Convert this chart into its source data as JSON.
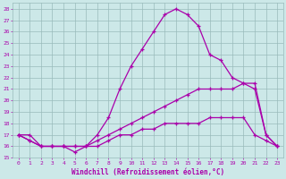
{
  "xlabel": "Windchill (Refroidissement éolien,°C)",
  "xlim": [
    -0.5,
    23.5
  ],
  "ylim": [
    15,
    28.5
  ],
  "yticks": [
    15,
    16,
    17,
    18,
    19,
    20,
    21,
    22,
    23,
    24,
    25,
    26,
    27,
    28
  ],
  "xticks": [
    0,
    1,
    2,
    3,
    4,
    5,
    6,
    7,
    8,
    9,
    10,
    11,
    12,
    13,
    14,
    15,
    16,
    17,
    18,
    19,
    20,
    21,
    22,
    23
  ],
  "bg_color": "#cce8e8",
  "line_color": "#aa00aa",
  "grid_color": "#99bbbb",
  "lines": [
    {
      "x": [
        0,
        1,
        2,
        3,
        4,
        5,
        6,
        7,
        8,
        9,
        10,
        11,
        12,
        13,
        14,
        15,
        16,
        17,
        18,
        19,
        20,
        21,
        22,
        23
      ],
      "y": [
        17,
        17,
        16,
        16,
        16,
        15.5,
        16,
        17,
        18.5,
        21,
        23,
        24.5,
        26,
        27.5,
        28,
        27.5,
        26.5,
        24,
        23.5,
        22,
        21.5,
        21.5,
        17,
        16
      ]
    },
    {
      "x": [
        0,
        1,
        2,
        3,
        4,
        5,
        6,
        7,
        8,
        9,
        10,
        11,
        12,
        13,
        14,
        15,
        16,
        17,
        18,
        19,
        20,
        21,
        22,
        23
      ],
      "y": [
        17,
        16.5,
        16,
        16,
        16,
        16,
        16,
        16.5,
        17,
        17.5,
        18,
        18.5,
        19,
        19.5,
        20,
        20.5,
        21,
        21,
        21,
        21,
        21.5,
        21,
        17,
        16
      ]
    },
    {
      "x": [
        0,
        1,
        2,
        3,
        4,
        5,
        6,
        7,
        8,
        9,
        10,
        11,
        12,
        13,
        14,
        15,
        16,
        17,
        18,
        19,
        20,
        21,
        22,
        23
      ],
      "y": [
        17,
        16.5,
        16,
        16,
        16,
        16,
        16,
        16,
        16.5,
        17,
        17,
        17.5,
        17.5,
        18,
        18,
        18,
        18,
        18.5,
        18.5,
        18.5,
        18.5,
        17,
        16.5,
        16
      ]
    }
  ]
}
